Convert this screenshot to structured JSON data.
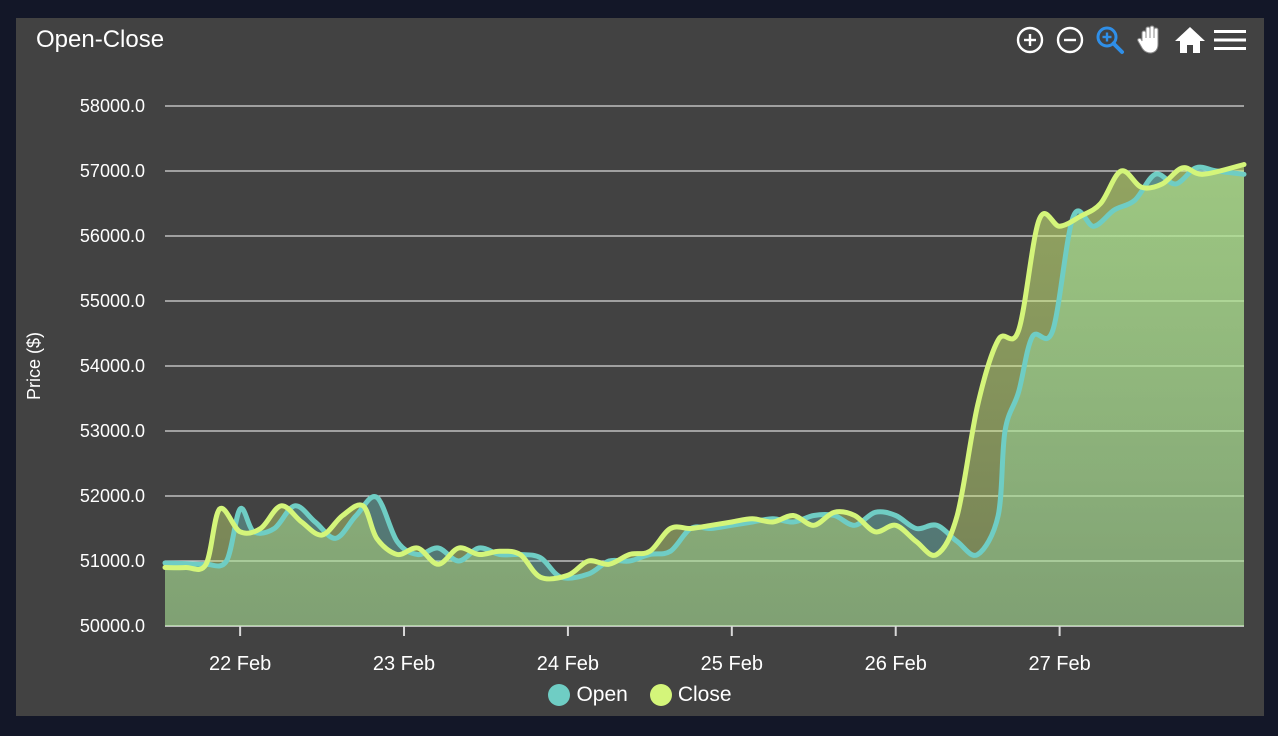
{
  "chart_data": {
    "type": "area",
    "title": "Open-Close",
    "ylabel": "Price ($)",
    "xlabel": "",
    "ylim": [
      50000,
      58000
    ],
    "xlim": [
      "2021-02-21 13:00",
      "2021-02-28 03:00"
    ],
    "yticks": [
      "50000.0",
      "51000.0",
      "52000.0",
      "53000.0",
      "54000.0",
      "55000.0",
      "56000.0",
      "57000.0",
      "58000.0"
    ],
    "xticks": [
      {
        "x": "2021-02-22 00:00",
        "label": "22 Feb"
      },
      {
        "x": "2021-02-23 00:00",
        "label": "23 Feb"
      },
      {
        "x": "2021-02-24 00:00",
        "label": "24 Feb"
      },
      {
        "x": "2021-02-25 00:00",
        "label": "25 Feb"
      },
      {
        "x": "2021-02-26 00:00",
        "label": "26 Feb"
      },
      {
        "x": "2021-02-27 00:00",
        "label": "27 Feb"
      }
    ],
    "grid": true,
    "legend": "bottom-center",
    "series": [
      {
        "name": "Open",
        "color": "#6fcdc4",
        "points": [
          [
            "2021-02-21 13:00",
            50970
          ],
          [
            "2021-02-21 16:00",
            50960
          ],
          [
            "2021-02-21 19:00",
            50950
          ],
          [
            "2021-02-21 22:00",
            51000
          ],
          [
            "2021-02-22 00:00",
            51800
          ],
          [
            "2021-02-22 02:00",
            51450
          ],
          [
            "2021-02-22 05:00",
            51500
          ],
          [
            "2021-02-22 08:00",
            51850
          ],
          [
            "2021-02-22 11:00",
            51600
          ],
          [
            "2021-02-22 14:00",
            51350
          ],
          [
            "2021-02-22 17:00",
            51700
          ],
          [
            "2021-02-22 20:00",
            51980
          ],
          [
            "2021-02-22 23:00",
            51300
          ],
          [
            "2021-02-23 02:00",
            51100
          ],
          [
            "2021-02-23 05:00",
            51200
          ],
          [
            "2021-02-23 08:00",
            51000
          ],
          [
            "2021-02-23 11:00",
            51200
          ],
          [
            "2021-02-23 14:00",
            51100
          ],
          [
            "2021-02-23 17:00",
            51100
          ],
          [
            "2021-02-23 20:00",
            51050
          ],
          [
            "2021-02-23 23:00",
            50750
          ],
          [
            "2021-02-24 03:00",
            50800
          ],
          [
            "2021-02-24 06:00",
            51000
          ],
          [
            "2021-02-24 09:00",
            51000
          ],
          [
            "2021-02-24 12:00",
            51100
          ],
          [
            "2021-02-24 15:00",
            51150
          ],
          [
            "2021-02-24 18:00",
            51500
          ],
          [
            "2021-02-24 21:00",
            51500
          ],
          [
            "2021-02-25 00:00",
            51550
          ],
          [
            "2021-02-25 03:00",
            51600
          ],
          [
            "2021-02-25 06:00",
            51650
          ],
          [
            "2021-02-25 09:00",
            51600
          ],
          [
            "2021-02-25 12:00",
            51700
          ],
          [
            "2021-02-25 15:00",
            51700
          ],
          [
            "2021-02-25 18:00",
            51550
          ],
          [
            "2021-02-25 21:00",
            51750
          ],
          [
            "2021-02-26 00:00",
            51700
          ],
          [
            "2021-02-26 03:00",
            51500
          ],
          [
            "2021-02-26 06:00",
            51550
          ],
          [
            "2021-02-26 09:00",
            51300
          ],
          [
            "2021-02-26 12:00",
            51100
          ],
          [
            "2021-02-26 15:00",
            51700
          ],
          [
            "2021-02-26 16:00",
            53000
          ],
          [
            "2021-02-26 18:00",
            53600
          ],
          [
            "2021-02-26 20:00",
            54450
          ],
          [
            "2021-02-26 23:00",
            54550
          ],
          [
            "2021-02-27 02:00",
            56300
          ],
          [
            "2021-02-27 05:00",
            56150
          ],
          [
            "2021-02-27 08:00",
            56400
          ],
          [
            "2021-02-27 11:00",
            56550
          ],
          [
            "2021-02-27 14:00",
            56950
          ],
          [
            "2021-02-27 17:00",
            56800
          ],
          [
            "2021-02-27 20:00",
            57050
          ],
          [
            "2021-02-27 23:00",
            57000
          ],
          [
            "2021-02-28 03:00",
            56950
          ]
        ]
      },
      {
        "name": "Close",
        "color": "#d4f57a",
        "points": [
          [
            "2021-02-21 13:00",
            50900
          ],
          [
            "2021-02-21 16:00",
            50900
          ],
          [
            "2021-02-21 19:00",
            50950
          ],
          [
            "2021-02-21 21:00",
            51800
          ],
          [
            "2021-02-22 00:00",
            51450
          ],
          [
            "2021-02-22 03:00",
            51500
          ],
          [
            "2021-02-22 06:00",
            51850
          ],
          [
            "2021-02-22 09:00",
            51600
          ],
          [
            "2021-02-22 12:00",
            51400
          ],
          [
            "2021-02-22 15:00",
            51700
          ],
          [
            "2021-02-22 18:00",
            51850
          ],
          [
            "2021-02-22 20:00",
            51350
          ],
          [
            "2021-02-22 23:00",
            51100
          ],
          [
            "2021-02-23 02:00",
            51200
          ],
          [
            "2021-02-23 05:00",
            50950
          ],
          [
            "2021-02-23 08:00",
            51200
          ],
          [
            "2021-02-23 11:00",
            51100
          ],
          [
            "2021-02-23 14:00",
            51150
          ],
          [
            "2021-02-23 17:00",
            51100
          ],
          [
            "2021-02-23 20:00",
            50750
          ],
          [
            "2021-02-24 00:00",
            50780
          ],
          [
            "2021-02-24 03:00",
            51000
          ],
          [
            "2021-02-24 06:00",
            50950
          ],
          [
            "2021-02-24 09:00",
            51100
          ],
          [
            "2021-02-24 12:00",
            51150
          ],
          [
            "2021-02-24 15:00",
            51500
          ],
          [
            "2021-02-24 18:00",
            51500
          ],
          [
            "2021-02-24 21:00",
            51550
          ],
          [
            "2021-02-25 00:00",
            51600
          ],
          [
            "2021-02-25 03:00",
            51650
          ],
          [
            "2021-02-25 06:00",
            51600
          ],
          [
            "2021-02-25 09:00",
            51700
          ],
          [
            "2021-02-25 12:00",
            51550
          ],
          [
            "2021-02-25 15:00",
            51750
          ],
          [
            "2021-02-25 18:00",
            51700
          ],
          [
            "2021-02-25 21:00",
            51450
          ],
          [
            "2021-02-26 00:00",
            51550
          ],
          [
            "2021-02-26 03:00",
            51300
          ],
          [
            "2021-02-26 06:00",
            51100
          ],
          [
            "2021-02-26 09:00",
            51700
          ],
          [
            "2021-02-26 12:00",
            53400
          ],
          [
            "2021-02-26 15:00",
            54400
          ],
          [
            "2021-02-26 18:00",
            54550
          ],
          [
            "2021-02-26 21:00",
            56250
          ],
          [
            "2021-02-27 00:00",
            56150
          ],
          [
            "2021-02-27 03:00",
            56300
          ],
          [
            "2021-02-27 06:00",
            56500
          ],
          [
            "2021-02-27 09:00",
            57000
          ],
          [
            "2021-02-27 12:00",
            56750
          ],
          [
            "2021-02-27 15:00",
            56800
          ],
          [
            "2021-02-27 18:00",
            57050
          ],
          [
            "2021-02-27 21:00",
            56950
          ],
          [
            "2021-02-28 03:00",
            57100
          ]
        ]
      }
    ]
  },
  "toolbar": {
    "icons": [
      "zoom-in-icon",
      "zoom-out-icon",
      "selection-zoom-icon",
      "pan-hand-icon",
      "home-reset-icon",
      "menu-icon"
    ],
    "icon_color": "#ffffff",
    "active_icon_color": "#2f8fe8"
  },
  "colors": {
    "page_background": "#131728",
    "panel_background": "#424242",
    "grid": "#d8d8d8",
    "text": "#ffffff"
  }
}
